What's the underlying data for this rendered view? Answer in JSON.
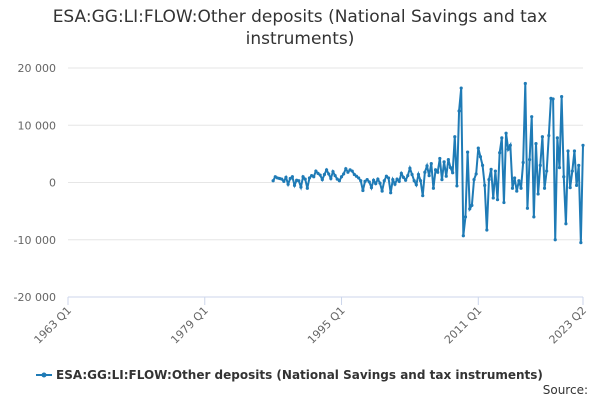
{
  "chart_data": {
    "type": "line",
    "title": "ESA:GG:LI:FLOW:Other deposits (National Savings and tax instruments)",
    "x": [
      "1987 Q1",
      "1987 Q2",
      "1987 Q3",
      "1987 Q4",
      "1988 Q1",
      "1988 Q2",
      "1988 Q3",
      "1988 Q4",
      "1989 Q1",
      "1989 Q2",
      "1989 Q3",
      "1989 Q4",
      "1990 Q1",
      "1990 Q2",
      "1990 Q3",
      "1990 Q4",
      "1991 Q1",
      "1991 Q2",
      "1991 Q3",
      "1991 Q4",
      "1992 Q1",
      "1992 Q2",
      "1992 Q3",
      "1992 Q4",
      "1993 Q1",
      "1993 Q2",
      "1993 Q3",
      "1993 Q4",
      "1994 Q1",
      "1994 Q2",
      "1994 Q3",
      "1994 Q4",
      "1995 Q1",
      "1995 Q2",
      "1995 Q3",
      "1995 Q4",
      "1996 Q1",
      "1996 Q2",
      "1996 Q3",
      "1996 Q4",
      "1997 Q1",
      "1997 Q2",
      "1997 Q3",
      "1997 Q4",
      "1998 Q1",
      "1998 Q2",
      "1998 Q3",
      "1998 Q4",
      "1999 Q1",
      "1999 Q2",
      "1999 Q3",
      "1999 Q4",
      "2000 Q1",
      "2000 Q2",
      "2000 Q3",
      "2000 Q4",
      "2001 Q1",
      "2001 Q2",
      "2001 Q3",
      "2001 Q4",
      "2002 Q1",
      "2002 Q2",
      "2002 Q3",
      "2002 Q4",
      "2003 Q1",
      "2003 Q2",
      "2003 Q3",
      "2003 Q4",
      "2004 Q1",
      "2004 Q2",
      "2004 Q3",
      "2004 Q4",
      "2005 Q1",
      "2005 Q2",
      "2005 Q3",
      "2005 Q4",
      "2006 Q1",
      "2006 Q2",
      "2006 Q3",
      "2006 Q4",
      "2007 Q1",
      "2007 Q2",
      "2007 Q3",
      "2007 Q4",
      "2008 Q1",
      "2008 Q2",
      "2008 Q3",
      "2008 Q4",
      "2009 Q1",
      "2009 Q2",
      "2009 Q3",
      "2009 Q4",
      "2010 Q1",
      "2010 Q2",
      "2010 Q3",
      "2010 Q4",
      "2011 Q1",
      "2011 Q2",
      "2011 Q3",
      "2011 Q4",
      "2012 Q1",
      "2012 Q2",
      "2012 Q3",
      "2012 Q4",
      "2013 Q1",
      "2013 Q2",
      "2013 Q3",
      "2013 Q4",
      "2014 Q1",
      "2014 Q2",
      "2014 Q3",
      "2014 Q4",
      "2015 Q1",
      "2015 Q2",
      "2015 Q3",
      "2015 Q4",
      "2016 Q1",
      "2016 Q2",
      "2016 Q3",
      "2016 Q4",
      "2017 Q1",
      "2017 Q2",
      "2017 Q3",
      "2017 Q4",
      "2018 Q1",
      "2018 Q2",
      "2018 Q3",
      "2018 Q4",
      "2019 Q1",
      "2019 Q2",
      "2019 Q3",
      "2019 Q4",
      "2020 Q1",
      "2020 Q2",
      "2020 Q3",
      "2020 Q4",
      "2021 Q1",
      "2021 Q2",
      "2021 Q3",
      "2021 Q4",
      "2022 Q1",
      "2022 Q2",
      "2022 Q3",
      "2022 Q4",
      "2023 Q1",
      "2023 Q2"
    ],
    "series": [
      {
        "name": "ESA:GG:LI:FLOW:Other deposits (National Savings and tax instruments)",
        "color": "#1f7bb6",
        "values": [
          300,
          1000,
          800,
          700,
          600,
          200,
          900,
          -300,
          700,
          1000,
          -500,
          400,
          300,
          -800,
          1000,
          600,
          -1000,
          800,
          1200,
          1000,
          2000,
          1600,
          1300,
          500,
          1400,
          2200,
          1500,
          700,
          1900,
          1200,
          600,
          300,
          1000,
          1500,
          2400,
          1800,
          2200,
          2000,
          1400,
          1100,
          800,
          300,
          -1400,
          200,
          500,
          100,
          -900,
          400,
          -200,
          600,
          -100,
          -1500,
          300,
          1100,
          800,
          -1800,
          500,
          -300,
          600,
          200,
          1600,
          900,
          400,
          1200,
          2500,
          1400,
          300,
          -400,
          1400,
          300,
          -2300,
          1800,
          2900,
          1200,
          3300,
          -1000,
          2200,
          1800,
          4200,
          500,
          3600,
          1100,
          4000,
          2600,
          1700,
          8000,
          -600,
          12500,
          16500,
          -9300,
          -6000,
          5300,
          -4600,
          -4000,
          500,
          1500,
          6000,
          4500,
          3000,
          -500,
          -8300,
          500,
          2300,
          -2700,
          2000,
          -3000,
          5200,
          7800,
          -3500,
          8600,
          5800,
          6500,
          -1000,
          800,
          -1500,
          300,
          -1000,
          3500,
          17300,
          -4500,
          4000,
          11500,
          -6000,
          6800,
          -2000,
          3000,
          8000,
          -1000,
          2000,
          8200,
          14700,
          14600,
          -10000,
          7800,
          2600,
          15000,
          1000,
          -7200,
          5500,
          -900,
          2000,
          5500,
          -500,
          3000,
          -10500,
          6500
        ]
      }
    ],
    "xlim": [
      "1963 Q1",
      "2023 Q2"
    ],
    "xticks": [
      "1963 Q1",
      "1979 Q1",
      "1995 Q1",
      "2011 Q1",
      "2023 Q2"
    ],
    "ylim": [
      -20000,
      20000
    ],
    "yticks": [
      {
        "value": -20000,
        "label": "-20 000"
      },
      {
        "value": -10000,
        "label": "-10 000"
      },
      0,
      {
        "value": 10000,
        "label": "10 000"
      },
      {
        "value": 20000,
        "label": "20 000"
      }
    ],
    "grid": true,
    "legend": "bottom",
    "source_label": "Source:"
  }
}
